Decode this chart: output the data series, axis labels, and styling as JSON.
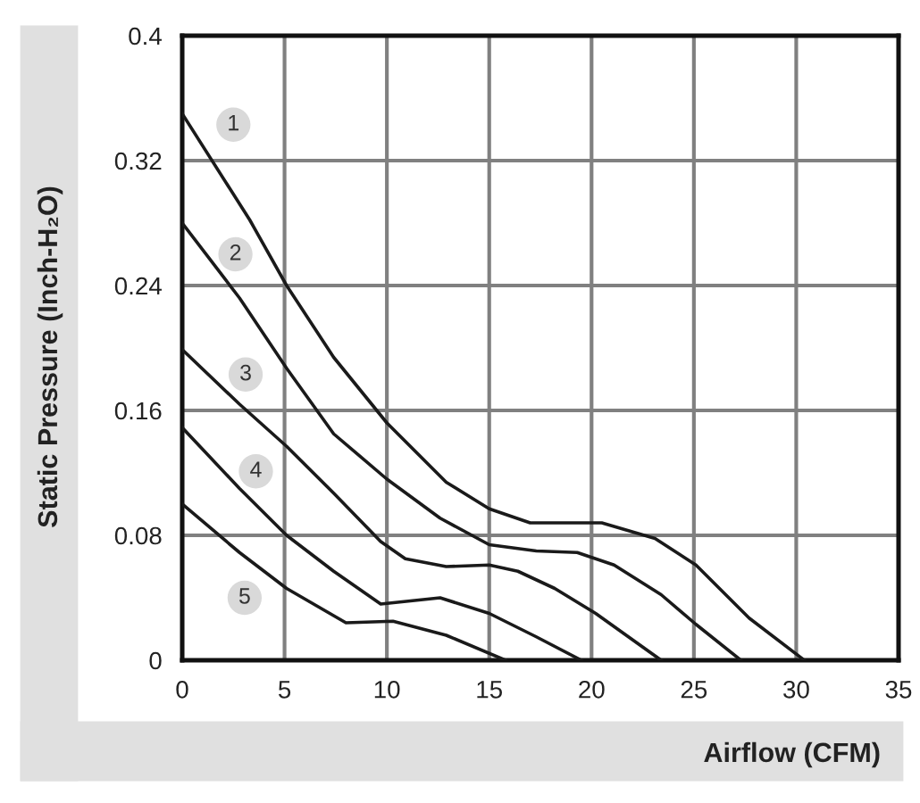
{
  "chart_data": {
    "type": "line",
    "xlabel": "Airflow (CFM)",
    "ylabel": "Static Pressure (Inch-H₂O)",
    "xlim": [
      0,
      35
    ],
    "ylim": [
      0,
      0.4
    ],
    "xticks": [
      0,
      5,
      10,
      15,
      20,
      25,
      30,
      35
    ],
    "yticks": [
      0,
      0.08,
      0.16,
      0.24,
      0.32,
      0.4
    ],
    "grid": true,
    "legend": false,
    "marker": "none",
    "line_style": "solid",
    "series": [
      {
        "name": "1",
        "color": "#1a1a1a",
        "x": [
          0,
          3.3,
          5.1,
          7.4,
          10,
          12.9,
          15,
          17,
          20.5,
          23.1,
          25.1,
          27.7,
          30.4
        ],
        "values": [
          0.35,
          0.282,
          0.24,
          0.194,
          0.152,
          0.114,
          0.097,
          0.088,
          0.088,
          0.078,
          0.061,
          0.027,
          0
        ]
      },
      {
        "name": "2",
        "color": "#1a1a1a",
        "x": [
          0,
          2.8,
          5.1,
          7.4,
          10,
          12.6,
          15,
          17.3,
          19.3,
          21.1,
          23.4,
          25.1,
          27.3
        ],
        "values": [
          0.28,
          0.232,
          0.187,
          0.145,
          0.116,
          0.091,
          0.074,
          0.07,
          0.069,
          0.061,
          0.042,
          0.023,
          0
        ]
      },
      {
        "name": "3",
        "color": "#1a1a1a",
        "x": [
          0,
          2.8,
          5.1,
          7.4,
          9.7,
          10.9,
          12.9,
          15,
          16.4,
          18.2,
          20.2,
          23.4
        ],
        "values": [
          0.199,
          0.164,
          0.137,
          0.107,
          0.076,
          0.065,
          0.06,
          0.061,
          0.057,
          0.046,
          0.03,
          0
        ]
      },
      {
        "name": "4",
        "color": "#1a1a1a",
        "x": [
          0,
          2.8,
          5.1,
          7.4,
          9.7,
          12.6,
          15,
          17.3,
          19.5
        ],
        "values": [
          0.149,
          0.11,
          0.08,
          0.057,
          0.036,
          0.04,
          0.03,
          0.015,
          0
        ]
      },
      {
        "name": "5",
        "color": "#1a1a1a",
        "x": [
          0,
          2.8,
          5.1,
          8,
          10.3,
          12.9,
          15.8
        ],
        "values": [
          0.1,
          0.069,
          0.046,
          0.024,
          0.025,
          0.016,
          0
        ]
      }
    ]
  }
}
